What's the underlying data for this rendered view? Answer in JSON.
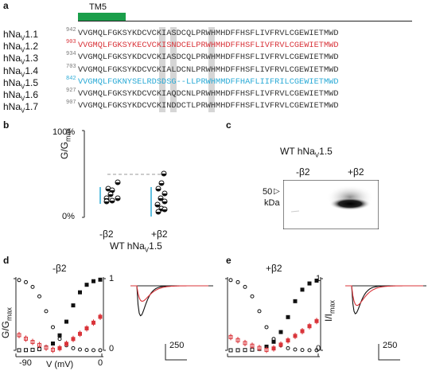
{
  "panel_a": {
    "letter": "a",
    "tm_label": "TM5",
    "tm_color": "#1a9e4a",
    "rows": [
      {
        "name_main": "hNa",
        "name_sub": "V",
        "name_suffix": "1.1",
        "num": "942",
        "seq": "VVGMQLFGKSYKDCVCKIASDCQLPRWHMHDFFHSFLIVFRVLCGEWIETMWD",
        "color": "#333333"
      },
      {
        "name_main": "hNa",
        "name_sub": "V",
        "name_suffix": "1.2",
        "num": "903",
        "seq": "VVGMQLFGKSYKECVCKISNDCELPRWHMHDFFHSFLIVFRVLCGEWIETMWD",
        "color": "#d9343a"
      },
      {
        "name_main": "hNa",
        "name_sub": "V",
        "name_suffix": "1.3",
        "num": "934",
        "seq": "VVGMQLFGKSYKDCVCKIASDCQLPRWHMHDFFHSFLIVFRVLCGEWIETMWD",
        "color": "#333333"
      },
      {
        "name_main": "hNa",
        "name_sub": "V",
        "name_suffix": "1.4",
        "num": "703",
        "seq": "VVGMQLFGKSYKDCVCKIALDCNLPRWHMHDFFHSFLIVFRVLCGEWIETMWD",
        "color": "#333333"
      },
      {
        "name_main": "hNa",
        "name_sub": "V",
        "name_suffix": "1.5",
        "num": "842",
        "seq": "VVGMQLFGKNYSELRDSDSG--LLPRWHMMDFFHAFLIIFRILCGEWIETMWD",
        "color": "#2aaad6"
      },
      {
        "name_main": "hNa",
        "name_sub": "V",
        "name_suffix": "1.6",
        "num": "927",
        "seq": "VVGMQLFGKSYKDCVCKIAQDCNLPRWHMHDFFHSFLIVFRVLCGEWIETMWD",
        "color": "#333333"
      },
      {
        "name_main": "hNa",
        "name_sub": "V",
        "name_suffix": "1.7",
        "num": "907",
        "seq": "VVGMQLFGKSYKDCVCKINDDCTLPRWHMHDFFHSFLIVFRVLCGEWIETMWD",
        "color": "#333333"
      }
    ]
  },
  "panel_b": {
    "letter": "b",
    "ylabel_main": "G/G",
    "ylabel_sub": "max",
    "y_tick_top": "100%",
    "y_tick_bottom": "0%",
    "xcat_1": "-β2",
    "xcat_2": "+β2",
    "xlabel_main": "WT hNa",
    "xlabel_sub": "V",
    "xlabel_suffix": "1.5"
  },
  "panel_c": {
    "letter": "c",
    "title_main": "WT hNa",
    "title_sub": "V",
    "title_suffix": "1.5",
    "lane_1": "-β2",
    "lane_2": "+β2",
    "marker": "50",
    "marker_unit": "kDa"
  },
  "panel_d": {
    "letter": "d",
    "condition": "-β2",
    "ylabel_main": "G/G",
    "ylabel_sub": "max",
    "y_tick_1": "1",
    "y_tick_0": "0",
    "x_tick_left": "-90",
    "x_label": "V (mV)",
    "x_tick_right": "0",
    "scale_label": "250"
  },
  "panel_e": {
    "letter": "e",
    "condition": "+β2",
    "ylabel_main": "I/I",
    "ylabel_sub": "max",
    "y_tick_1": "1",
    "y_tick_0": "0",
    "scale_label": "250"
  },
  "colors": {
    "red": "#d9343a",
    "blue": "#2aaad6",
    "black": "#111111",
    "gray": "#d6d6d6"
  }
}
